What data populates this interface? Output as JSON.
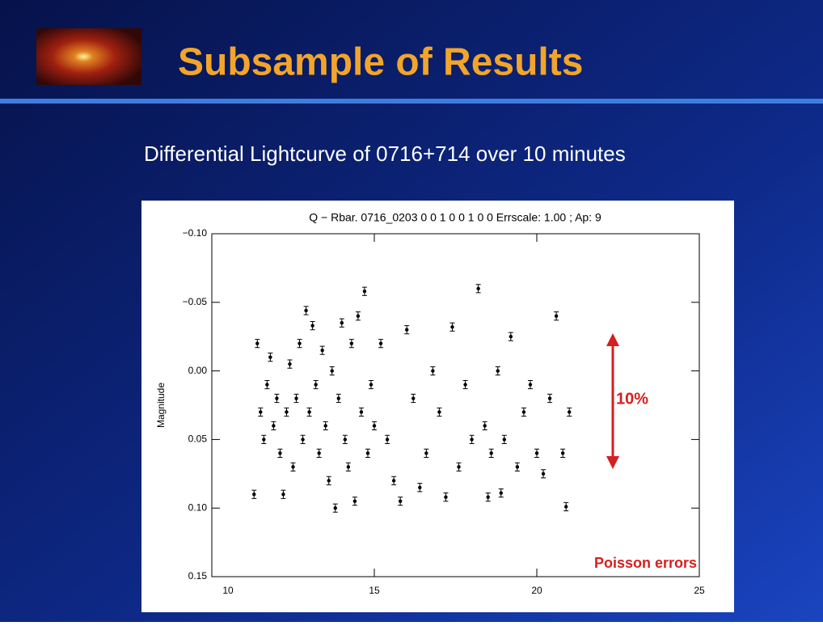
{
  "chart_data": {
    "type": "scatter",
    "slide_title": "Subsample of Results",
    "subtitle": "Differential Lightcurve of 0716+714 over 10 minutes",
    "title": "Q − Rbar. 0716_0203 0 0 1 0 0 1 0 0 Errscale: 1.00 ; Ap: 9",
    "ylabel": "Magnitude",
    "xlim": [
      10,
      25
    ],
    "xticks": [
      10,
      15,
      20,
      25
    ],
    "ylim": [
      -0.1,
      0.15
    ],
    "y_inverted": true,
    "yticks": [
      {
        "value": -0.1,
        "label": "−0.10"
      },
      {
        "value": -0.05,
        "label": "−0.05"
      },
      {
        "value": 0,
        "label": "0.00"
      },
      {
        "value": 0.05,
        "label": "0.05"
      },
      {
        "value": 0.1,
        "label": "0.10"
      },
      {
        "value": 0.15,
        "label": "0.15"
      }
    ],
    "annotations": [
      "10%",
      "Poisson errors"
    ],
    "series": [
      {
        "color": "#000000",
        "error": 0.003,
        "x": [
          11.3,
          11.4,
          11.5,
          11.6,
          11.7,
          11.8,
          11.9,
          12.0,
          12.1,
          12.2,
          12.3,
          12.4,
          12.5,
          12.6,
          12.7,
          12.8,
          12.9,
          13.0,
          13.1,
          13.2,
          13.3,
          13.4,
          13.5,
          13.6,
          13.7,
          13.8,
          13.9,
          14.0,
          14.1,
          14.2,
          14.3,
          14.4,
          14.5,
          14.6,
          14.7,
          14.8,
          14.9,
          15.0,
          15.2,
          15.4,
          15.6,
          15.8,
          16.0,
          16.2,
          16.4,
          16.6,
          16.8,
          17.0,
          17.2,
          17.4,
          17.6,
          17.8,
          18.0,
          18.2,
          18.4,
          18.5,
          18.6,
          18.8,
          18.9,
          19.0,
          19.2,
          19.4,
          19.6,
          19.8,
          20.0,
          20.2,
          20.4,
          20.6,
          20.8,
          20.9,
          21.0
        ],
        "values": [
          0.09,
          -0.02,
          0.03,
          0.05,
          0.01,
          -0.01,
          0.04,
          0.02,
          0.06,
          0.09,
          0.03,
          -0.005,
          0.07,
          0.02,
          -0.02,
          0.05,
          -0.044,
          0.03,
          -0.033,
          0.01,
          0.06,
          -0.015,
          0.04,
          0.08,
          0.0,
          0.1,
          0.02,
          -0.035,
          0.05,
          0.07,
          -0.02,
          0.095,
          -0.04,
          0.03,
          -0.058,
          0.06,
          0.01,
          0.04,
          -0.02,
          0.05,
          0.08,
          0.095,
          -0.03,
          0.02,
          0.085,
          0.06,
          0.0,
          0.03,
          0.092,
          -0.032,
          0.07,
          0.01,
          0.05,
          -0.06,
          0.04,
          0.092,
          0.06,
          0.0,
          0.089,
          0.05,
          -0.025,
          0.07,
          0.03,
          0.01,
          0.06,
          0.075,
          0.02,
          -0.04,
          0.06,
          0.099,
          0.03
        ]
      }
    ]
  }
}
